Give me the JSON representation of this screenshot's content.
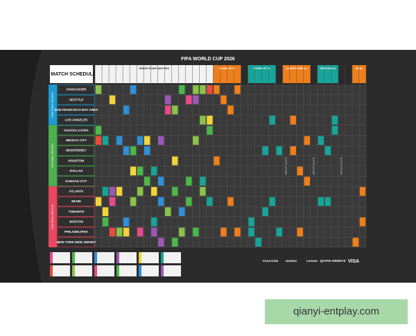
{
  "header": {
    "title": "FIFA WORLD CUP 2026",
    "schedule_title": "MATCH SCHEDULE"
  },
  "stages": [
    "GROUP STAGE MATCHES",
    "ROUND OF 32",
    "ROUND OF 16",
    "QUARTER-FINALS",
    "SEMI-FINALS",
    "FINAL"
  ],
  "regions": [
    {
      "name": "WESTERN REGION",
      "cities": [
        "VANCOUVER",
        "SEATTLE",
        "SAN FRANCISCO BAY AREA",
        "LOS ANGELES"
      ]
    },
    {
      "name": "CENTRAL REGION",
      "cities": [
        "GUADALAJARA",
        "MEXICO CITY",
        "MONTERREY",
        "HOUSTON",
        "DALLAS",
        "KANSAS CITY"
      ]
    },
    {
      "name": "EASTERN REGION",
      "cities": [
        "ATLANTA",
        "MIAMI",
        "TORONTO",
        "BOSTON",
        "PHILADELPHIA",
        "NEW YORK NEW JERSEY"
      ]
    }
  ],
  "rest_days": [
    "REST DAYS",
    "REST DAYS",
    "REST DAYS"
  ],
  "sponsors": [
    "Coca-Cola",
    "aramco",
    "Lenovo",
    "QATAR AIRWAYS",
    "VISA"
  ],
  "watermark": "qianyi-entplay.com"
}
